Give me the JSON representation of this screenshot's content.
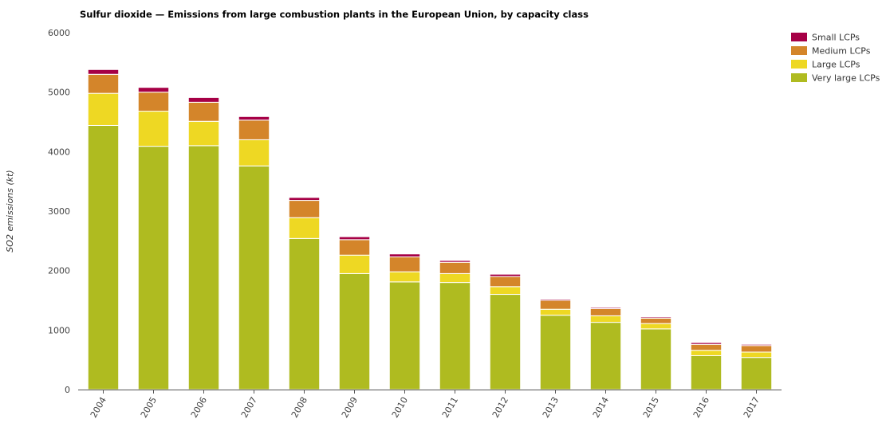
{
  "chart_data": {
    "type": "bar",
    "stacked": true,
    "title": "Sulfur dioxide — Emissions from large combustion plants in the European Union, by capacity class",
    "xlabel": "",
    "ylabel": "SO2 emissions (kt)",
    "ylim": [
      0,
      6000
    ],
    "yticks": [
      0,
      1000,
      2000,
      3000,
      4000,
      5000,
      6000
    ],
    "grid": false,
    "legend_position": "top-right",
    "categories": [
      "2004",
      "2005",
      "2006",
      "2007",
      "2008",
      "2009",
      "2010",
      "2011",
      "2012",
      "2013",
      "2014",
      "2015",
      "2016",
      "2017"
    ],
    "series": [
      {
        "name": "Very large LCPs",
        "color": "#afbb20",
        "values": [
          4440,
          4090,
          4100,
          3760,
          2540,
          1950,
          1810,
          1800,
          1600,
          1250,
          1130,
          1020,
          570,
          540
        ]
      },
      {
        "name": "Large LCPs",
        "color": "#eed823",
        "values": [
          540,
          590,
          410,
          440,
          350,
          310,
          170,
          150,
          130,
          100,
          110,
          90,
          90,
          90
        ]
      },
      {
        "name": "Medium LCPs",
        "color": "#d4852a",
        "values": [
          320,
          320,
          320,
          330,
          290,
          260,
          250,
          190,
          170,
          150,
          120,
          90,
          100,
          110
        ]
      },
      {
        "name": "Small LCPs",
        "color": "#a60046",
        "values": [
          80,
          80,
          80,
          60,
          50,
          50,
          50,
          30,
          40,
          20,
          20,
          20,
          30,
          20
        ]
      }
    ],
    "legend_order": [
      "Small LCPs",
      "Medium LCPs",
      "Large LCPs",
      "Very large LCPs"
    ]
  }
}
